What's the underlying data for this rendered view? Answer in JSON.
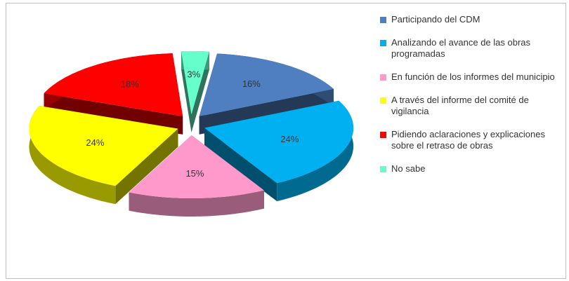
{
  "chart_data": {
    "type": "pie",
    "categories": [
      "Participando del CDM",
      "Analizando el avance de las obras programadas",
      "En función de los informes del municipio",
      "A través del informe del comité de vigilancia",
      "Pidiendo aclaraciones y explicaciones sobre el retraso de obras",
      "No sabe"
    ],
    "values": [
      16,
      24,
      15,
      24,
      18,
      3
    ],
    "value_labels": [
      "16%",
      "24%",
      "15%",
      "24%",
      "18%",
      "3%"
    ],
    "colors": [
      "#4f7fc0",
      "#00b0f0",
      "#ff99cc",
      "#ffff00",
      "#ff0000",
      "#66ffcc"
    ],
    "legend": "right"
  }
}
